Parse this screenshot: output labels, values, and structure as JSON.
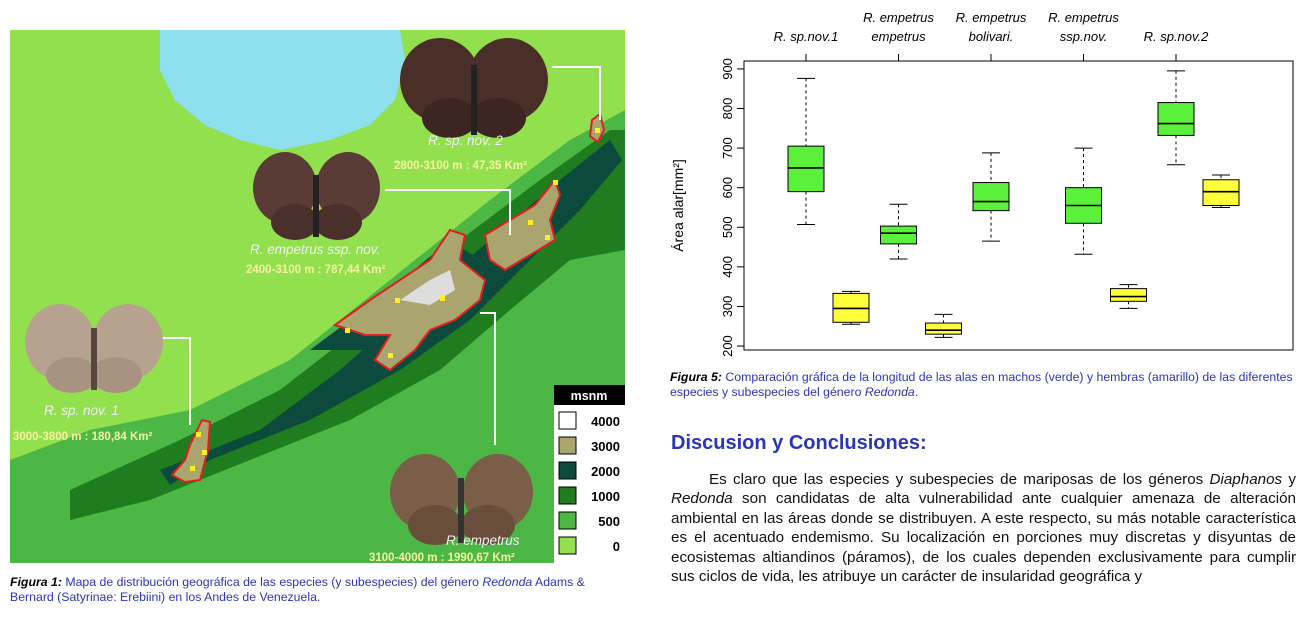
{
  "map": {
    "labels": [
      {
        "name": "R. sp. nov. 2",
        "range": "2800-3100 m : 47,35 Km²"
      },
      {
        "name": "R. empetrus ssp. nov.",
        "range": "2400-3100 m : 787,44 Km²"
      },
      {
        "name": "R. sp. nov. 1",
        "range": "3000-3800 m : 180,84 Km²"
      },
      {
        "name": "R. empetrus",
        "range": "3100-4000 m : 1990,67 Km²"
      }
    ],
    "legend": {
      "title": "msnm",
      "items": [
        {
          "label": "4000",
          "color": "#ffffff"
        },
        {
          "label": "3000",
          "color": "#aaa56e"
        },
        {
          "label": "2000",
          "color": "#0d4a3e"
        },
        {
          "label": "1000",
          "color": "#1f7c1f"
        },
        {
          "label": "500",
          "color": "#4cb744"
        },
        {
          "label": "0",
          "color": "#93e04f"
        }
      ]
    },
    "colors": {
      "lake": "#8ee0ee",
      "lowland": "#93e04f",
      "mid": "#4cb744",
      "high": "#1f7c1f",
      "dark": "#0d4a3e",
      "paramo": "#aaa56e",
      "boundary": "#e02020",
      "points": "#ffee22"
    }
  },
  "figure1_caption": {
    "label": "Figura 1:",
    "text_a": " Mapa de distribución geográfica de las especies (y subespecies) del género ",
    "genus": "Redonda",
    "text_b": " Adams & Bernard (Satyrinae: Erebiini) en los Andes de Venezuela."
  },
  "chart_data": {
    "type": "box",
    "top_labels": [
      {
        "line1": "",
        "line2": "R. sp.nov.1"
      },
      {
        "line1": "R. empetrus",
        "line2": "empetrus"
      },
      {
        "line1": "R. empetrus",
        "line2": "bolivari."
      },
      {
        "line1": "R. empetrus",
        "line2": "ssp.nov."
      },
      {
        "line1": "",
        "line2": "R. sp.nov.2"
      }
    ],
    "ylabel": "Área alar[mm²]",
    "ylim": [
      190,
      920
    ],
    "yticks": [
      200,
      300,
      400,
      500,
      600,
      700,
      800,
      900
    ],
    "boxes": [
      {
        "group": 0,
        "sex": "male",
        "color": "#5af03c",
        "min": 507,
        "q1": 590,
        "median": 650,
        "q3": 705,
        "max": 876
      },
      {
        "group": 0,
        "sex": "female",
        "color": "#ffff3c",
        "min": 255,
        "q1": 260,
        "median": 295,
        "q3": 333,
        "max": 338
      },
      {
        "group": 1,
        "sex": "male",
        "color": "#5af03c",
        "min": 420,
        "q1": 458,
        "median": 485,
        "q3": 503,
        "max": 558
      },
      {
        "group": 1,
        "sex": "female",
        "color": "#ffff3c",
        "min": 222,
        "q1": 230,
        "median": 240,
        "q3": 258,
        "max": 280
      },
      {
        "group": 2,
        "sex": "male",
        "color": "#5af03c",
        "min": 465,
        "q1": 542,
        "median": 565,
        "q3": 613,
        "max": 688
      },
      {
        "group": 3,
        "sex": "male",
        "color": "#5af03c",
        "min": 432,
        "q1": 510,
        "median": 555,
        "q3": 600,
        "max": 700
      },
      {
        "group": 3,
        "sex": "female",
        "color": "#ffff3c",
        "min": 295,
        "q1": 313,
        "median": 325,
        "q3": 345,
        "max": 355
      },
      {
        "group": 4,
        "sex": "male",
        "color": "#5af03c",
        "min": 658,
        "q1": 732,
        "median": 762,
        "q3": 815,
        "max": 895
      },
      {
        "group": 4,
        "sex": "female",
        "color": "#ffff3c",
        "min": 550,
        "q1": 555,
        "median": 590,
        "q3": 620,
        "max": 632
      }
    ]
  },
  "figure5_caption": {
    "label": "Figura 5:",
    "text_a": " Comparación gráfica de la longitud de las alas en machos (verde) y hembras (amarillo) de las diferentes especies y subespecies del género ",
    "genus": "Redonda",
    "text_b": "."
  },
  "section": {
    "heading": "Discusion y Conclusiones:",
    "p_a": "Es claro que las especies y subespecies de mariposas de los géneros ",
    "g1": "Diaphanos",
    "p_b": " y ",
    "g2": "Redonda",
    "p_c": " son candidatas de alta vulnerabilidad ante cualquier amenaza de alteración ambiental en las áreas donde se distribuyen. A este respecto, su más notable característica es el acentuado endemismo. Su localización en porciones muy discretas y disyuntas de ecosistemas altiandinos (páramos), de los cuales dependen exclusivamente para cumplir sus ciclos de vida, les atribuye un carácter de insularidad geográfica y"
  }
}
